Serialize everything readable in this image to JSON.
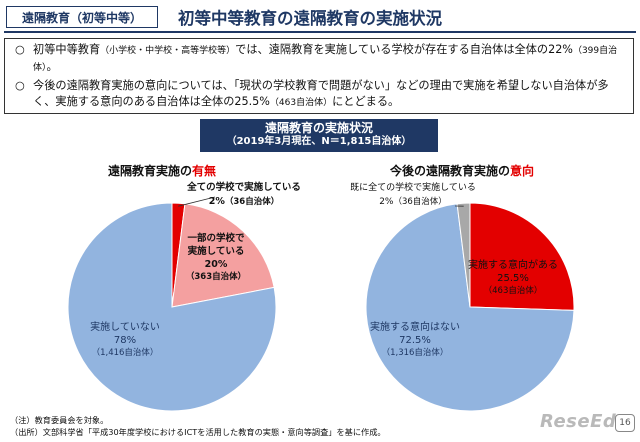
{
  "header": {
    "section_tag": "遠隔教育（初等中等）",
    "title": "初等中等教育の遠隔教育の実施状況"
  },
  "summary": {
    "bullet_mark": "○",
    "bullet1_main": "初等中等教育",
    "bullet1_paren": "（小学校・中学校・高等学校等）",
    "bullet1_rest": "では、遠隔教育を実施している学校が存在する自治体は全体の22%",
    "bullet1_count": "（399自治体）",
    "bullet1_end": "。",
    "bullet2_main": "今後の遠隔教育実施の意向については、「現状の学校教育で問題がない」などの理由で実施を希望しない自治体が多く、実施する意向のある自治体は全体の25.5%",
    "bullet2_count": "（463自治体）",
    "bullet2_end": "にとどまる。"
  },
  "banner": {
    "title": "遠隔教育の実施状況",
    "subtitle": "（2019年3月現在、N＝1,815自治体）"
  },
  "charts": {
    "left_title_prefix": "遠隔教育実施の",
    "left_title_highlight": "有無",
    "right_title_prefix": "今後の遠隔教育実施の",
    "right_title_highlight": "意向"
  },
  "chart_data": [
    {
      "type": "pie",
      "title": "遠隔教育実施の有無",
      "slices": [
        {
          "lines": [
            "全ての学校で実施している"
          ],
          "pct_label": "2%",
          "count_label": "（36自治体）",
          "value": 36,
          "color": "#e30000"
        },
        {
          "lines": [
            "一部の学校で",
            "実施している"
          ],
          "pct_label": "20%",
          "count_label": "（363自治体）",
          "value": 363,
          "color": "#f4a0a0"
        },
        {
          "lines": [
            "実施していない"
          ],
          "pct_label": "78%",
          "count_label": "（1,416自治体）",
          "value": 1416,
          "color": "#92b4df"
        }
      ]
    },
    {
      "type": "pie",
      "title": "今後の遠隔教育実施の意向",
      "slices": [
        {
          "lines": [
            "実施する意向がある"
          ],
          "pct_label": "25.5%",
          "count_label": "（463自治体）",
          "value": 463,
          "color": "#e30000"
        },
        {
          "lines": [
            "実施する意向はない"
          ],
          "pct_label": "72.5%",
          "count_label": "（1,316自治体）",
          "value": 1316,
          "color": "#92b4df"
        },
        {
          "lines": [
            "既に全ての学校で実施している"
          ],
          "pct_label": "2%",
          "count_label": "（36自治体）",
          "value": 36,
          "color": "#a8a8a8"
        }
      ]
    }
  ],
  "footer": {
    "note": "（注）教育委員会を対象。",
    "source": "（出所）文部科学省「平成30年度学校におけるICTを活用した教育の実態・意向等調査」を基に作成。",
    "logo": "ReseEd",
    "page_number": "16"
  }
}
